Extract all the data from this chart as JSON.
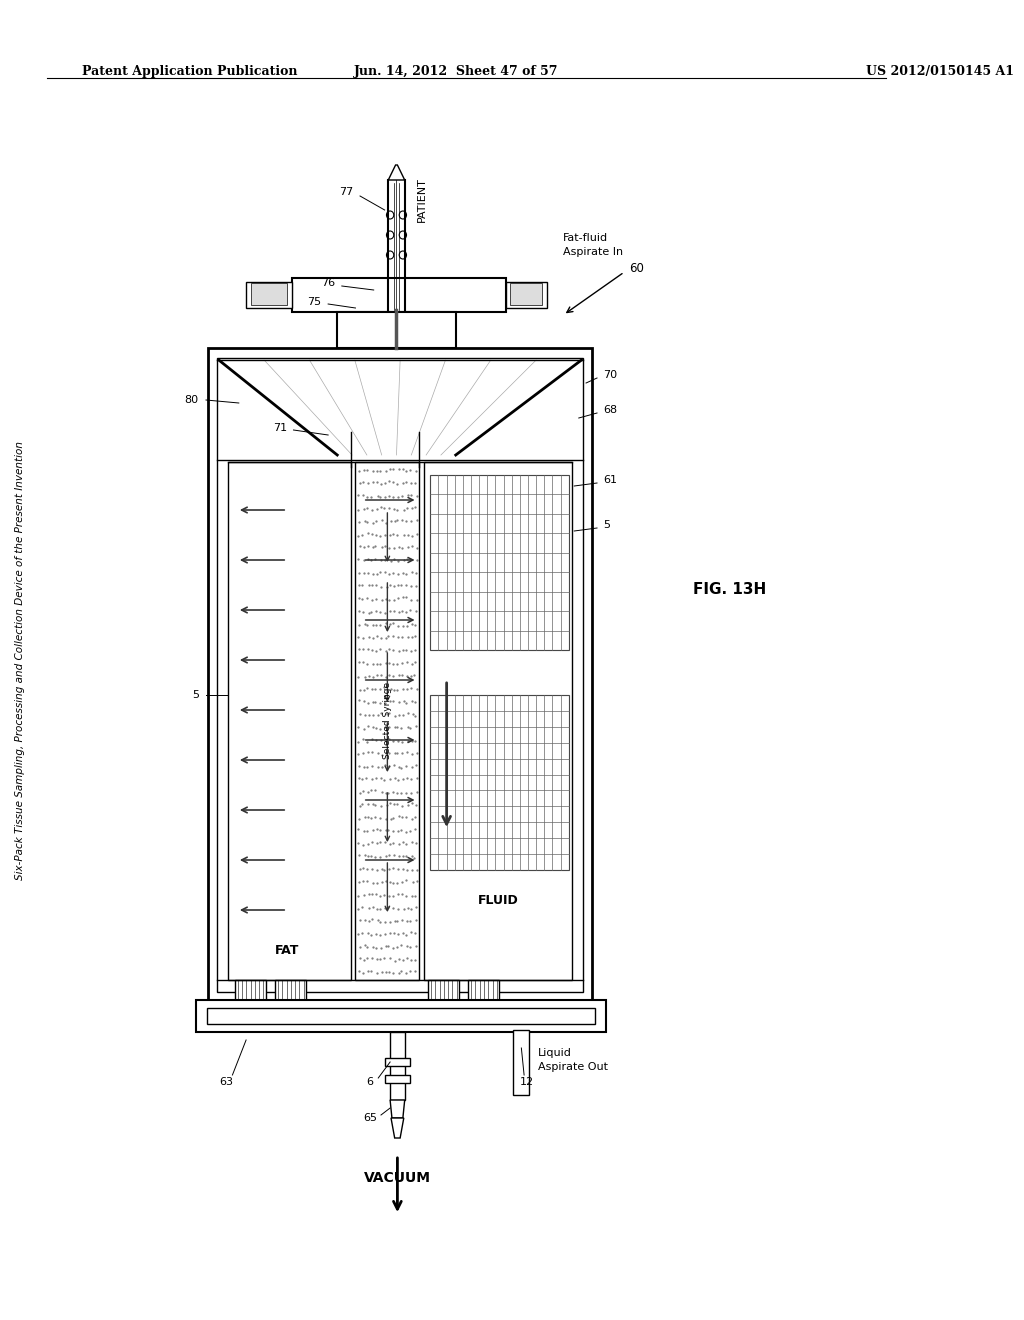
{
  "bg_color": "#ffffff",
  "header_left": "Patent Application Publication",
  "header_mid": "Jun. 14, 2012  Sheet 47 of 57",
  "header_right": "US 2012/0150145 A1",
  "side_title": "Six-Pack Tissue Sampling, Processing and Collection Device of the Present Invention",
  "fig_label": "FIG. 13H",
  "label_patient": "PATIENT",
  "label_fat_fluid": "Fat-fluid\nAspirate In",
  "label_vacuum": "VACUUM",
  "label_liquid_out": "Liquid\nAspirate Out",
  "label_fat": "FAT",
  "label_fluid": "FLUID",
  "label_selected_syringe": "Selected Syringe",
  "ref_60": "60",
  "ref_61": "61",
  "ref_63": "63",
  "ref_65": "65",
  "ref_5_left": "5",
  "ref_5_right": "5",
  "ref_6": "6",
  "ref_12": "12",
  "ref_68": "68",
  "ref_70": "70",
  "ref_71": "71",
  "ref_75": "75",
  "ref_76": "76",
  "ref_77": "77",
  "ref_80": "80"
}
